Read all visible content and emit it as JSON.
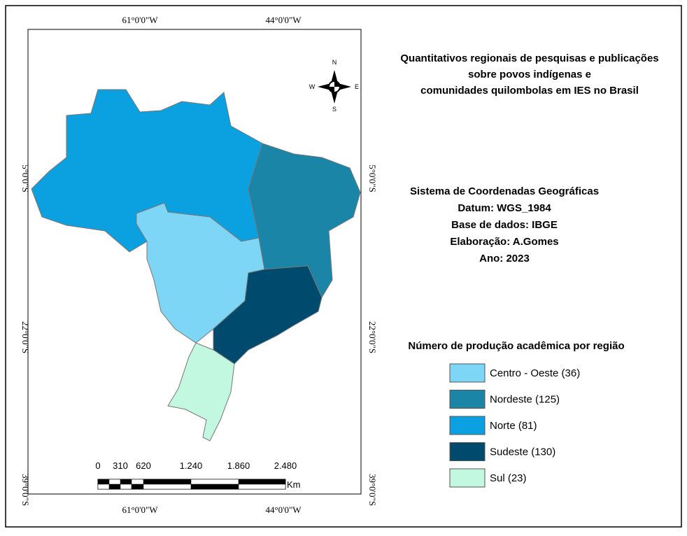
{
  "title": [
    "Quantitativos regionais de pesquisas e publicações",
    "sobre povos indígenas e",
    "comunidades quilombolas em IES no Brasil"
  ],
  "grid_labels": {
    "top": [
      "61°0'0\"W",
      "44°0'0\"W"
    ],
    "bottom": [
      "61°0'0\"W",
      "44°0'0\"W"
    ],
    "left": [
      "5°0'0\"S",
      "22°0'0\"S",
      "39°0'0\"S"
    ],
    "right": [
      "5°0'0\"S",
      "22°0'0\"S",
      "39°0'0\"S"
    ]
  },
  "compass": [
    "N",
    "S",
    "W",
    "E"
  ],
  "info": [
    "Sistema de Coordenadas Geográficas",
    "Datum: WGS_1984",
    "Base de dados: IBGE",
    "Elaboração: A.Gomes",
    "Ano: 2023"
  ],
  "legend": {
    "title": "Número de produção acadêmica por região",
    "items": [
      {
        "label": "Centro - Oeste (36)",
        "color": "#7dd6f5"
      },
      {
        "label": "Nordeste (125)",
        "color": "#1b85a8"
      },
      {
        "label": "Norte (81)",
        "color": "#0ba0e0"
      },
      {
        "label": "Sudeste (130)",
        "color": "#004a6e"
      },
      {
        "label": "Sul (23)",
        "color": "#c2f7e0"
      }
    ]
  },
  "scale_bar": {
    "labels": [
      "0",
      "310",
      "620",
      "1.240",
      "1.860",
      "2.480"
    ],
    "unit": "Km"
  }
}
